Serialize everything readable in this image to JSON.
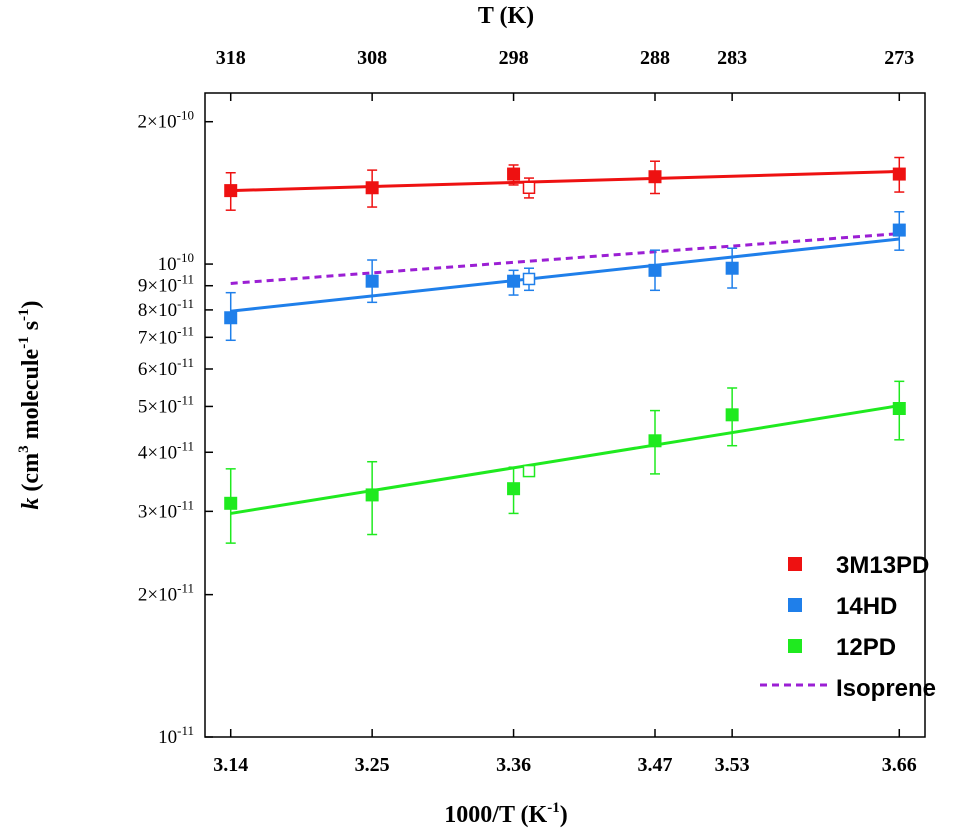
{
  "chart_data": {
    "type": "scatter",
    "xlabel": {
      "base": "1000/T (K",
      "sup": "-1",
      "close": ")"
    },
    "x2label": "T (K)",
    "ylabel": {
      "k": "k",
      "p1": " (cm",
      "s1": "3",
      "p2": " molecule",
      "s2": "-1",
      "p3": " s",
      "s3": "-1",
      "p4": ")"
    },
    "xlim": [
      3.12,
      3.68
    ],
    "ylim": [
      1e-11,
      2.3e-10
    ],
    "yscale": "log",
    "xticks": [
      {
        "v": 3.14,
        "label": "3.14"
      },
      {
        "v": 3.25,
        "label": "3.25"
      },
      {
        "v": 3.36,
        "label": "3.36"
      },
      {
        "v": 3.47,
        "label": "3.47"
      },
      {
        "v": 3.53,
        "label": "3.53"
      },
      {
        "v": 3.66,
        "label": "3.66"
      }
    ],
    "x2ticks": [
      {
        "v": 3.14,
        "label": "318"
      },
      {
        "v": 3.25,
        "label": "308"
      },
      {
        "v": 3.36,
        "label": "298"
      },
      {
        "v": 3.47,
        "label": "288"
      },
      {
        "v": 3.53,
        "label": "283"
      },
      {
        "v": 3.66,
        "label": "273"
      }
    ],
    "yticks": [
      {
        "v": 1e-11,
        "m": "10",
        "e": "-11"
      },
      {
        "v": 2e-11,
        "m": "2×10",
        "e": "-11"
      },
      {
        "v": 3e-11,
        "m": "3×10",
        "e": "-11"
      },
      {
        "v": 4e-11,
        "m": "4×10",
        "e": "-11"
      },
      {
        "v": 5e-11,
        "m": "5×10",
        "e": "-11"
      },
      {
        "v": 6e-11,
        "m": "6×10",
        "e": "-11"
      },
      {
        "v": 7e-11,
        "m": "7×10",
        "e": "-11"
      },
      {
        "v": 8e-11,
        "m": "8×10",
        "e": "-11"
      },
      {
        "v": 9e-11,
        "m": "9×10",
        "e": "-11"
      },
      {
        "v": 1e-10,
        "m": "10",
        "e": "-10"
      },
      {
        "v": 2e-10,
        "m": "2×10",
        "e": "-10"
      }
    ],
    "series": [
      {
        "name": "3M13PD",
        "color": "#ee1111",
        "points": [
          {
            "x": 3.14,
            "y": 1.43e-10,
            "err": [
              1.3e-10,
              1.56e-10
            ]
          },
          {
            "x": 3.25,
            "y": 1.45e-10,
            "err": [
              1.32e-10,
              1.58e-10
            ]
          },
          {
            "x": 3.36,
            "y": 1.55e-10,
            "err": [
              1.47e-10,
              1.62e-10
            ]
          },
          {
            "x": 3.47,
            "y": 1.53e-10,
            "err": [
              1.41e-10,
              1.65e-10
            ]
          },
          {
            "x": 3.66,
            "y": 1.55e-10,
            "err": [
              1.42e-10,
              1.68e-10
            ]
          }
        ],
        "open_points": [
          {
            "x": 3.372,
            "y": 1.45e-10,
            "err": [
              1.38e-10,
              1.52e-10
            ]
          }
        ],
        "fit": {
          "x": [
            3.14,
            3.66
          ],
          "y": [
            1.43e-10,
            1.57e-10
          ]
        }
      },
      {
        "name": "14HD",
        "color": "#1f7fea",
        "points": [
          {
            "x": 3.14,
            "y": 7.7e-11,
            "err": [
              6.9e-11,
              8.7e-11
            ]
          },
          {
            "x": 3.25,
            "y": 9.2e-11,
            "err": [
              8.3e-11,
              1.02e-10
            ]
          },
          {
            "x": 3.36,
            "y": 9.2e-11,
            "err": [
              8.6e-11,
              9.7e-11
            ]
          },
          {
            "x": 3.47,
            "y": 9.7e-11,
            "err": [
              8.8e-11,
              1.07e-10
            ]
          },
          {
            "x": 3.53,
            "y": 9.8e-11,
            "err": [
              8.9e-11,
              1.08e-10
            ]
          },
          {
            "x": 3.66,
            "y": 1.18e-10,
            "err": [
              1.07e-10,
              1.29e-10
            ]
          }
        ],
        "open_points": [
          {
            "x": 3.372,
            "y": 9.3e-11,
            "err": [
              8.8e-11,
              9.8e-11
            ]
          }
        ],
        "fit": {
          "x": [
            3.14,
            3.66
          ],
          "y": [
            7.95e-11,
            1.13e-10
          ]
        }
      },
      {
        "name": "12PD",
        "color": "#1fea1f",
        "points": [
          {
            "x": 3.14,
            "y": 3.12e-11,
            "err": [
              2.57e-11,
              3.69e-11
            ]
          },
          {
            "x": 3.25,
            "y": 3.25e-11,
            "err": [
              2.68e-11,
              3.82e-11
            ]
          },
          {
            "x": 3.36,
            "y": 3.35e-11,
            "err": [
              2.97e-11,
              3.72e-11
            ]
          },
          {
            "x": 3.47,
            "y": 4.23e-11,
            "err": [
              3.6e-11,
              4.9e-11
            ]
          },
          {
            "x": 3.53,
            "y": 4.8e-11,
            "err": [
              4.13e-11,
              5.47e-11
            ]
          },
          {
            "x": 3.66,
            "y": 4.95e-11,
            "err": [
              4.25e-11,
              5.65e-11
            ]
          }
        ],
        "open_points": [
          {
            "x": 3.372,
            "y": 3.65e-11,
            "err": [
              3.56e-11,
              3.74e-11
            ]
          }
        ],
        "fit": {
          "x": [
            3.14,
            3.66
          ],
          "y": [
            2.97e-11,
            5.02e-11
          ]
        }
      },
      {
        "name": "Isoprene",
        "color": "#9b1fd4",
        "dashed": true,
        "fit": {
          "x": [
            3.14,
            3.66
          ],
          "y": [
            9.1e-11,
            1.16e-10
          ]
        }
      }
    ],
    "legend_position": "bottom-right"
  }
}
